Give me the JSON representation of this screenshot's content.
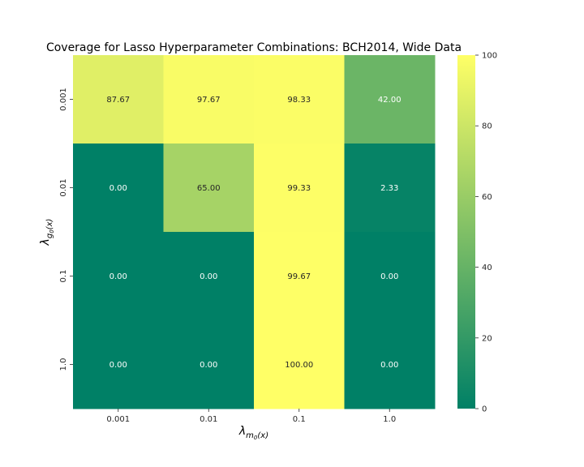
{
  "chart_data": {
    "type": "heatmap",
    "title": "Coverage for Lasso Hyperparameter Combinations: BCH2014, Wide Data",
    "x_label": {
      "base": "λ",
      "sub": "m",
      "subsub": "0",
      "tail": "(x)"
    },
    "y_label": {
      "base": "λ",
      "sub": "g",
      "subsub": "0",
      "tail": "(x)"
    },
    "x_categories": [
      "0.001",
      "0.01",
      "0.1",
      "1.0"
    ],
    "y_categories": [
      "0.001",
      "0.01",
      "0.1",
      "1.0"
    ],
    "values": [
      [
        87.67,
        97.67,
        98.33,
        42.0
      ],
      [
        0.0,
        65.0,
        99.33,
        2.33
      ],
      [
        0.0,
        0.0,
        99.67,
        0.0
      ],
      [
        0.0,
        0.0,
        100.0,
        0.0
      ]
    ],
    "value_labels": [
      [
        "87.67",
        "97.67",
        "98.33",
        "42.00"
      ],
      [
        "0.00",
        "65.00",
        "99.33",
        "2.33"
      ],
      [
        "0.00",
        "0.00",
        "99.67",
        "0.00"
      ],
      [
        "0.00",
        "0.00",
        "100.00",
        "0.00"
      ]
    ],
    "colormap": "summer",
    "color_range": [
      0,
      100
    ],
    "colorbar_ticks": [
      0,
      20,
      40,
      60,
      80,
      100
    ],
    "colors": {
      "low": "#008066",
      "high": "#ffff66",
      "label_dark_bg": "#ffffff",
      "label_light_bg": "#262626"
    }
  }
}
